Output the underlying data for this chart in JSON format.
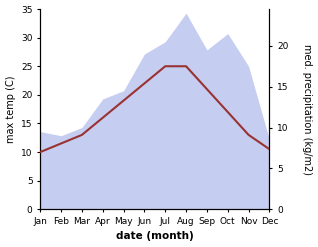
{
  "months": [
    "Jan",
    "Feb",
    "Mar",
    "Apr",
    "May",
    "Jun",
    "Jul",
    "Aug",
    "Sep",
    "Oct",
    "Nov",
    "Dec"
  ],
  "temp": [
    10.0,
    11.5,
    13.0,
    16.0,
    19.0,
    22.0,
    25.0,
    25.0,
    21.0,
    17.0,
    13.0,
    10.5
  ],
  "precip": [
    9.5,
    9.0,
    10.0,
    13.5,
    14.5,
    19.0,
    20.5,
    24.0,
    19.5,
    21.5,
    17.5,
    8.5
  ],
  "temp_color": "#993333",
  "precip_fill_color": "#c5cdf0",
  "temp_ylim": [
    0,
    35
  ],
  "precip_ylim": [
    0,
    24.5
  ],
  "right_tick_vals": [
    0,
    5,
    10,
    15,
    20
  ],
  "left_tick_vals": [
    0,
    5,
    10,
    15,
    20,
    25,
    30,
    35
  ],
  "xlabel": "date (month)",
  "ylabel_left": "max temp (C)",
  "ylabel_right": "med. precipitation (kg/m2)",
  "background_color": "#ffffff",
  "temp_linewidth": 1.5,
  "ylabel_fontsize": 7,
  "xlabel_fontsize": 7.5,
  "tick_labelsize": 6.5
}
